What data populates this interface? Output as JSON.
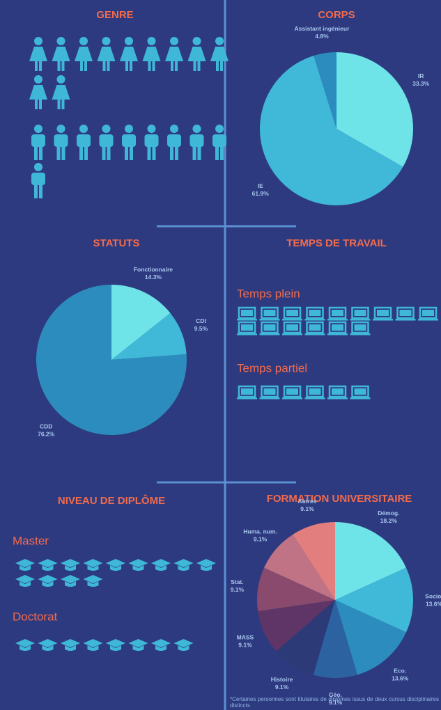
{
  "chart_data": [
    {
      "type": "pictogram",
      "title": "GENRE",
      "values": [
        11,
        10
      ],
      "icons": [
        "female",
        "male"
      ],
      "color": "#3fb8d8"
    },
    {
      "type": "pie",
      "title": "CORPS",
      "categories": [
        "IR",
        "IE",
        "Assistant ingénieur"
      ],
      "values": [
        33.3,
        61.9,
        4.8
      ],
      "value_labels": [
        "33.3%",
        "61.9%",
        "4.8%"
      ],
      "colors": [
        "#6ee3e8",
        "#40b8d8",
        "#2c8cbd"
      ]
    },
    {
      "type": "pie",
      "title": "STATUTS",
      "categories": [
        "Fonctionnaire",
        "CDI",
        "CDD"
      ],
      "values": [
        14.3,
        9.5,
        76.2
      ],
      "value_labels": [
        "14.3%",
        "9.5%",
        "76.2%"
      ],
      "colors": [
        "#6ee3e8",
        "#40b8d8",
        "#2c8cbd"
      ]
    },
    {
      "type": "pictogram",
      "title": "TEMPS DE TRAVAIL",
      "categories": [
        "Temps plein",
        "Temps partiel"
      ],
      "values": [
        15,
        6
      ],
      "icons": [
        "laptop",
        "laptop"
      ],
      "color": "#3fb8d8"
    },
    {
      "type": "pictogram",
      "title": "NIVEAU DE DIPLÔME",
      "categories": [
        "Master",
        "Doctorat"
      ],
      "values": [
        13,
        8
      ],
      "icons": [
        "cap",
        "cap"
      ],
      "color": "#3fb8d8"
    },
    {
      "type": "pie",
      "title": "FORMATION UNIVERSITAIRE",
      "categories": [
        "Démog.",
        "Socio.",
        "Eco.",
        "Géo.",
        "Histoire",
        "MASS",
        "Stat.",
        "Huma. num.",
        "Autres"
      ],
      "values": [
        18.2,
        13.6,
        13.6,
        9.1,
        9.1,
        9.1,
        9.1,
        9.1,
        9.1
      ],
      "value_labels": [
        "18.2%",
        "13.6%",
        "13.6%",
        "9.1%",
        "9.1%",
        "9.1%",
        "9.1%",
        "9.1%",
        "9.1%"
      ],
      "colors": [
        "#6ee3e8",
        "#40b8d8",
        "#2c8cbd",
        "#2c62a0",
        "#2c3a78",
        "#5e3566",
        "#8a4a6e",
        "#c07384",
        "#e27e7e"
      ],
      "footnote": "*Certaines personnes sont titulaires de diplômes issus de deux cursus disciplinaires distincts"
    }
  ]
}
